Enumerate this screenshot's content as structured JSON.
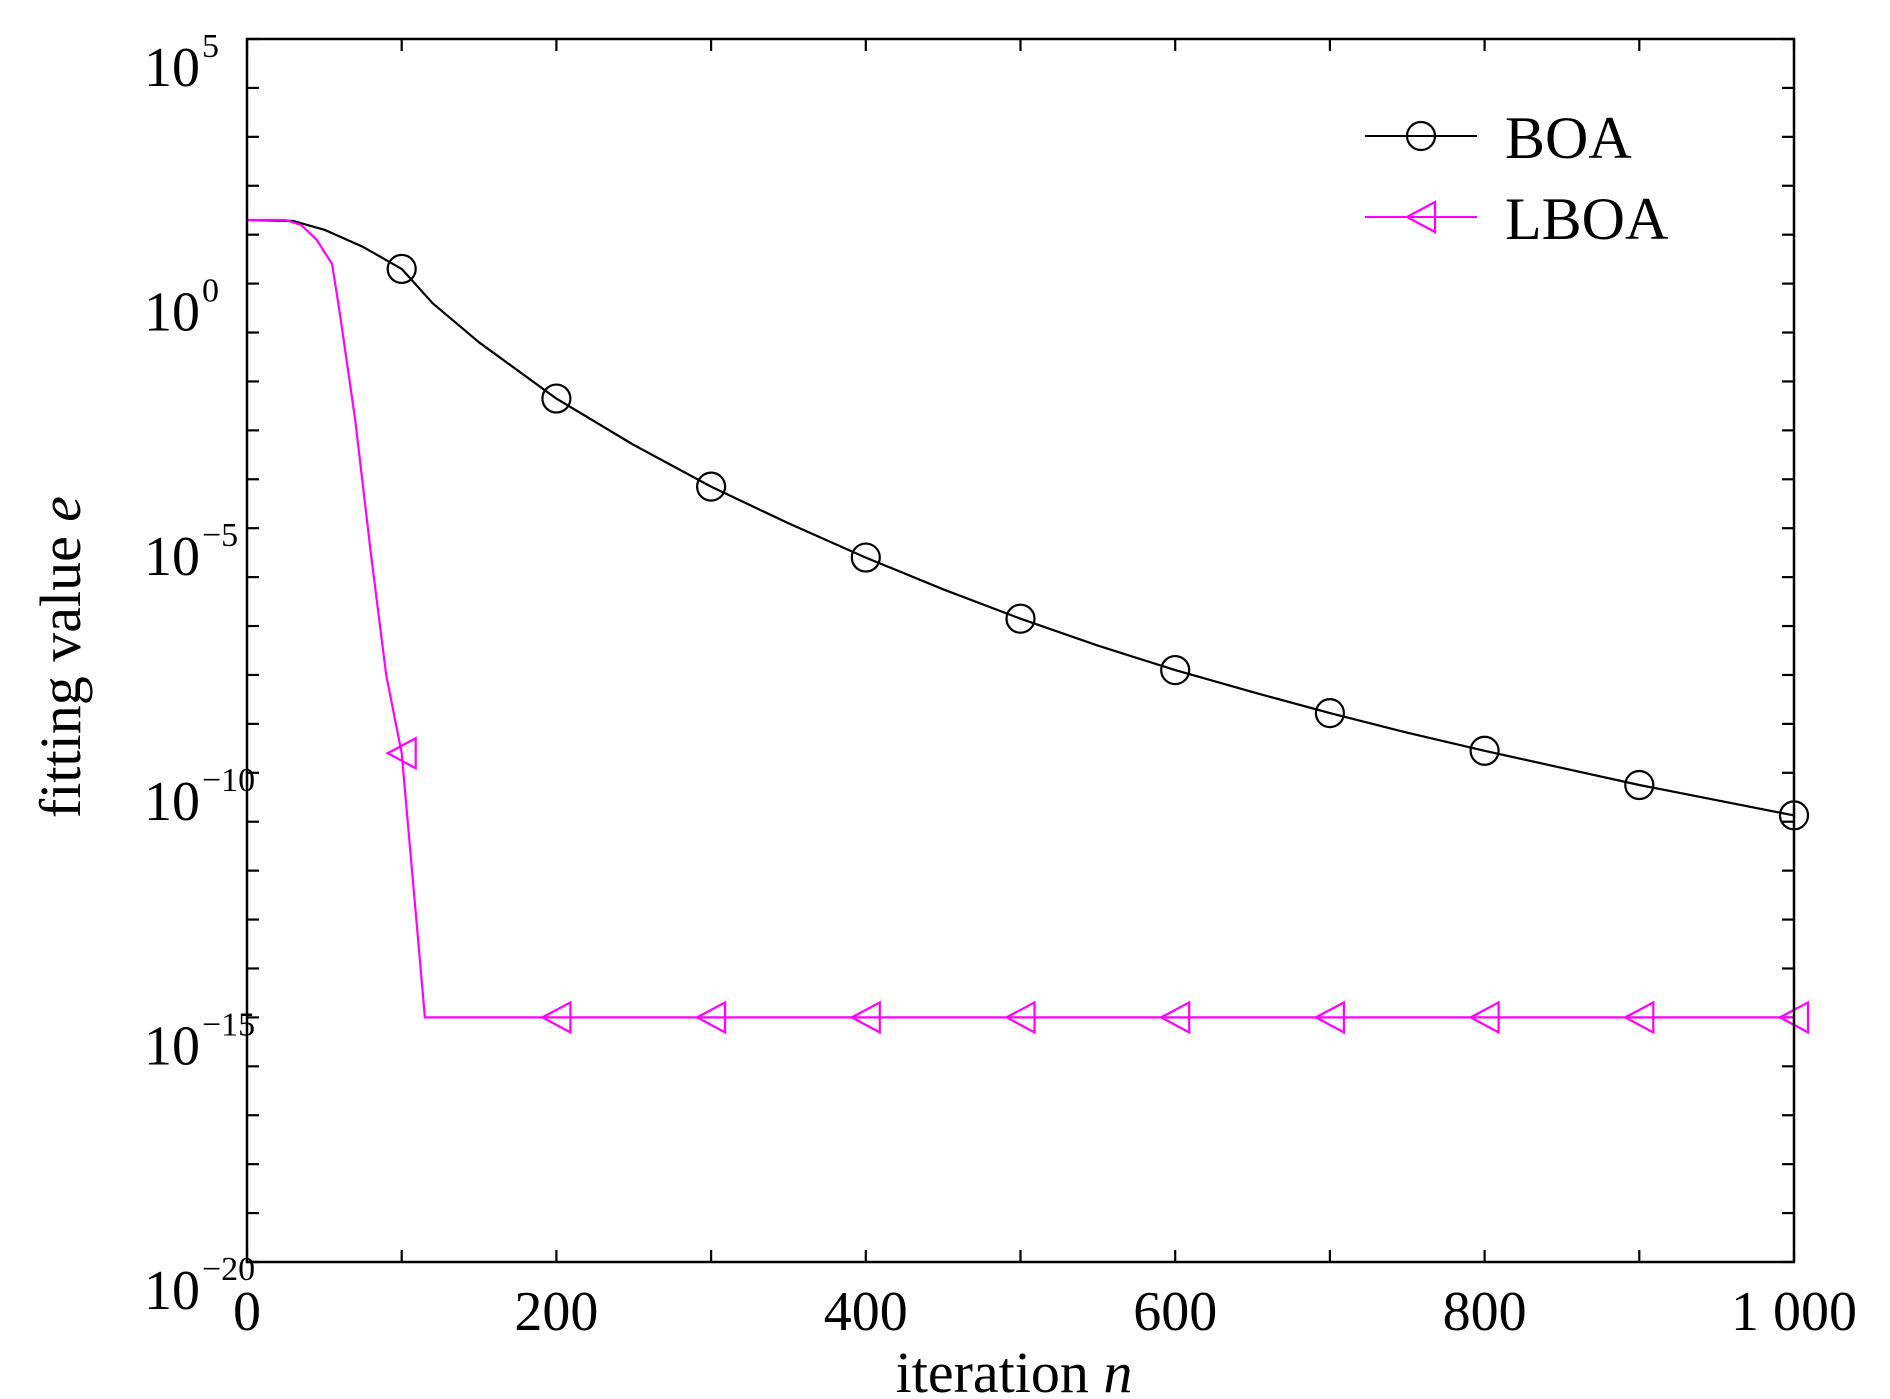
{
  "chart_data": {
    "type": "line",
    "title": "",
    "xlabel": "iteration",
    "xlabel_var": "n",
    "ylabel": "fitting value",
    "ylabel_var": "e",
    "yscale": "log",
    "xlim": [
      0,
      1000
    ],
    "ylim_log10": [
      -20,
      5
    ],
    "x_ticks": [
      0,
      200,
      400,
      600,
      800,
      1000
    ],
    "x_tick_labels": [
      "0",
      "200",
      "400",
      "600",
      "800",
      "1 000"
    ],
    "y_ticks_log10": [
      5,
      0,
      -5,
      -10,
      -15,
      -20
    ],
    "y_tick_base": "10",
    "y_tick_exponents": [
      "5",
      "0",
      "−5",
      "−10",
      "−15",
      "−20"
    ],
    "legend_placement": "top-right",
    "grid": false,
    "series": [
      {
        "name": "BOA",
        "color": "#000000",
        "marker": "circle",
        "x": [
          0,
          30,
          50,
          75,
          100,
          120,
          150,
          200,
          250,
          300,
          350,
          400,
          450,
          500,
          550,
          600,
          650,
          700,
          750,
          800,
          850,
          900,
          950,
          1000
        ],
        "log10_y": [
          1.3,
          1.28,
          1.1,
          0.75,
          0.3,
          -0.4,
          -1.2,
          -2.35,
          -3.3,
          -4.15,
          -4.9,
          -5.6,
          -6.25,
          -6.85,
          -7.4,
          -7.9,
          -8.35,
          -8.78,
          -9.18,
          -9.55,
          -9.9,
          -10.25,
          -10.56,
          -10.87
        ],
        "marker_x": [
          100,
          200,
          300,
          400,
          500,
          600,
          700,
          800,
          900,
          1000
        ]
      },
      {
        "name": "LBOA",
        "color": "#ff00ff",
        "marker": "triangle-left",
        "x": [
          0,
          25,
          35,
          45,
          55,
          60,
          70,
          80,
          90,
          100,
          110,
          115,
          1000
        ],
        "log10_y": [
          1.3,
          1.3,
          1.2,
          0.9,
          0.4,
          -0.6,
          -2.8,
          -5.5,
          -8.0,
          -9.6,
          -13.2,
          -15,
          -15
        ],
        "marker_x": [
          100,
          200,
          300,
          400,
          500,
          600,
          700,
          800,
          900,
          1000
        ]
      }
    ]
  }
}
